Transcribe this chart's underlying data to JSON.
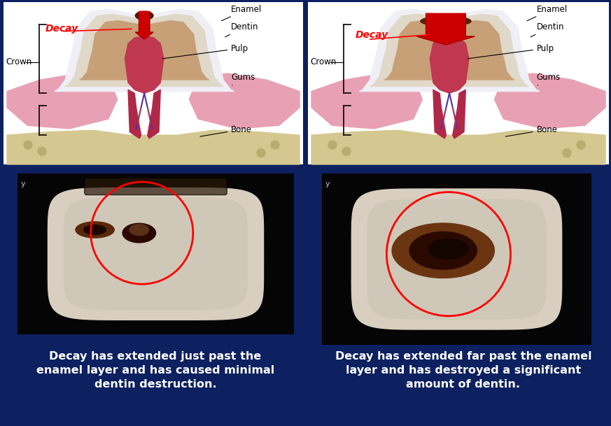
{
  "background_color": "#0d2060",
  "fig_width": 8.73,
  "fig_height": 6.09,
  "dpi": 100,
  "text_color": "#ffffff",
  "left_caption_line1": "Decay has extended just past the",
  "left_caption_line2": "enamel layer and has caused minimal",
  "left_caption_line3": "dentin destruction.",
  "right_caption_line1": "Decay has extended far past the enamel",
  "right_caption_line2": "layer and has destroyed a significant",
  "right_caption_line3": "amount of dentin.",
  "caption_fontsize": 11.5,
  "diagram_bg": "#ffffff",
  "photo_bg": "#000000",
  "enamel_color": "#e8e8f0",
  "enamel_inner": "#d4cfc8",
  "dentin_color": "#c8a87a",
  "pulp_color": "#c84060",
  "gum_color": "#e8a0b0",
  "root_dark": "#8b1a2a",
  "decay_small_color": "#5a1a00",
  "decay_large_color": "#3a0a00",
  "bone_color": "#d4c898",
  "nerve_color": "#6040c0",
  "blood_color": "#c03030"
}
